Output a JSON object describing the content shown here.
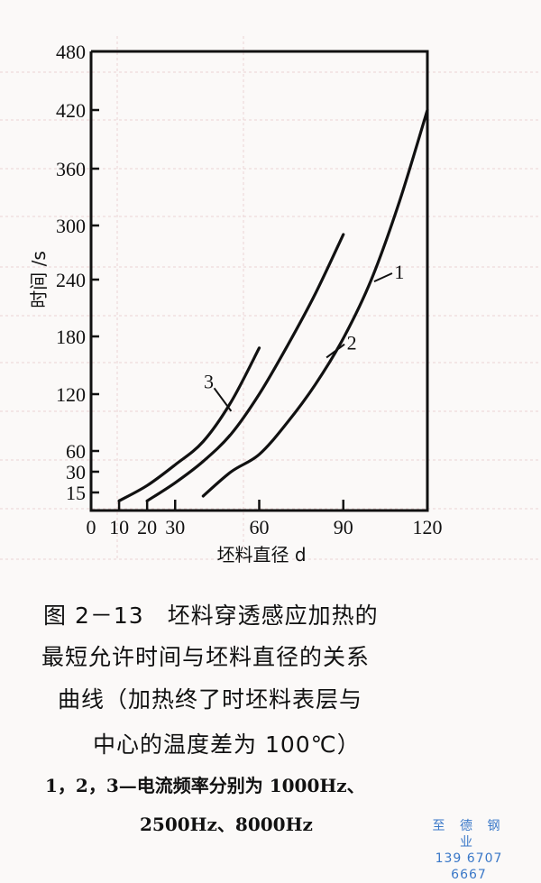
{
  "figure": {
    "caption_lines": [
      "图 2－13　坯料穿透感应加热的",
      "最短允许时间与坯料直径的关系",
      "曲线（加热终了时坯料表层与",
      "中心的温度差为 100℃）"
    ],
    "note_lines": [
      "1，2，3—电流频率分别为 1000Hz、",
      "2500Hz、8000Hz"
    ]
  },
  "watermark": {
    "name": "至 德 钢 业",
    "phone": "139 6707 6667",
    "color": "#3a78c8"
  },
  "chart_data": {
    "type": "line",
    "title": "",
    "xlabel": "坯料直径 d",
    "ylabel": "时间 /s",
    "x_ticks": [
      0,
      10,
      20,
      30,
      60,
      90,
      120
    ],
    "y_ticks": [
      15,
      30,
      60,
      120,
      180,
      240,
      300,
      360,
      420,
      480
    ],
    "xlim": [
      0,
      120
    ],
    "ylim": [
      0,
      480
    ],
    "grid": false,
    "legend": "inline numeric labels 1, 2, 3 on curves",
    "series": [
      {
        "name": "1",
        "frequency": "1000Hz",
        "points": [
          [
            40,
            12
          ],
          [
            50,
            30
          ],
          [
            60,
            55
          ],
          [
            70,
            90
          ],
          [
            80,
            130
          ],
          [
            90,
            178
          ],
          [
            100,
            240
          ],
          [
            110,
            325
          ],
          [
            120,
            420
          ]
        ]
      },
      {
        "name": "2",
        "frequency": "2500Hz",
        "points": [
          [
            20,
            8
          ],
          [
            30,
            22
          ],
          [
            40,
            45
          ],
          [
            50,
            78
          ],
          [
            60,
            120
          ],
          [
            70,
            170
          ],
          [
            80,
            225
          ],
          [
            90,
            290
          ]
        ]
      },
      {
        "name": "3",
        "frequency": "8000Hz",
        "points": [
          [
            10,
            8
          ],
          [
            20,
            20
          ],
          [
            30,
            40
          ],
          [
            40,
            70
          ],
          [
            50,
            112
          ],
          [
            60,
            168
          ]
        ]
      }
    ],
    "series_labels": [
      {
        "name": "1",
        "label_x": 110,
        "label_y": 245,
        "curve_x": 101,
        "curve_y": 238
      },
      {
        "name": "2",
        "label_x": 93,
        "label_y": 170,
        "curve_x": 84,
        "curve_y": 158
      },
      {
        "name": "3",
        "label_x": 42,
        "label_y": 130,
        "curve_x": 50,
        "curve_y": 102
      }
    ]
  }
}
